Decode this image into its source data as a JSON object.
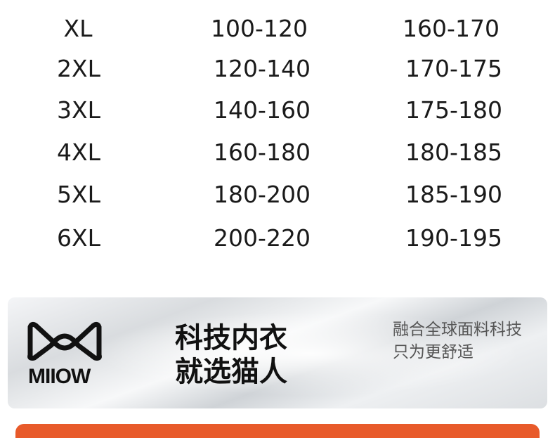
{
  "size_table": {
    "rows": [
      {
        "size": "XL",
        "weight": "100-120",
        "height": "160-170"
      },
      {
        "size": "2XL",
        "weight": "120-140",
        "height": "170-175"
      },
      {
        "size": "3XL",
        "weight": "140-160",
        "height": "175-180"
      },
      {
        "size": "4XL",
        "weight": "160-180",
        "height": "180-185"
      },
      {
        "size": "5XL",
        "weight": "180-200",
        "height": "185-190"
      },
      {
        "size": "6XL",
        "weight": "200-220",
        "height": "190-195"
      }
    ]
  },
  "banner": {
    "logo_text": "MIIOW",
    "slogan_line1": "科技内衣",
    "slogan_line2": "就选猫人",
    "sub_line1": "融合全球面料科技",
    "sub_line2": "只为更舒适"
  },
  "colors": {
    "accent": "#e85a2a"
  }
}
